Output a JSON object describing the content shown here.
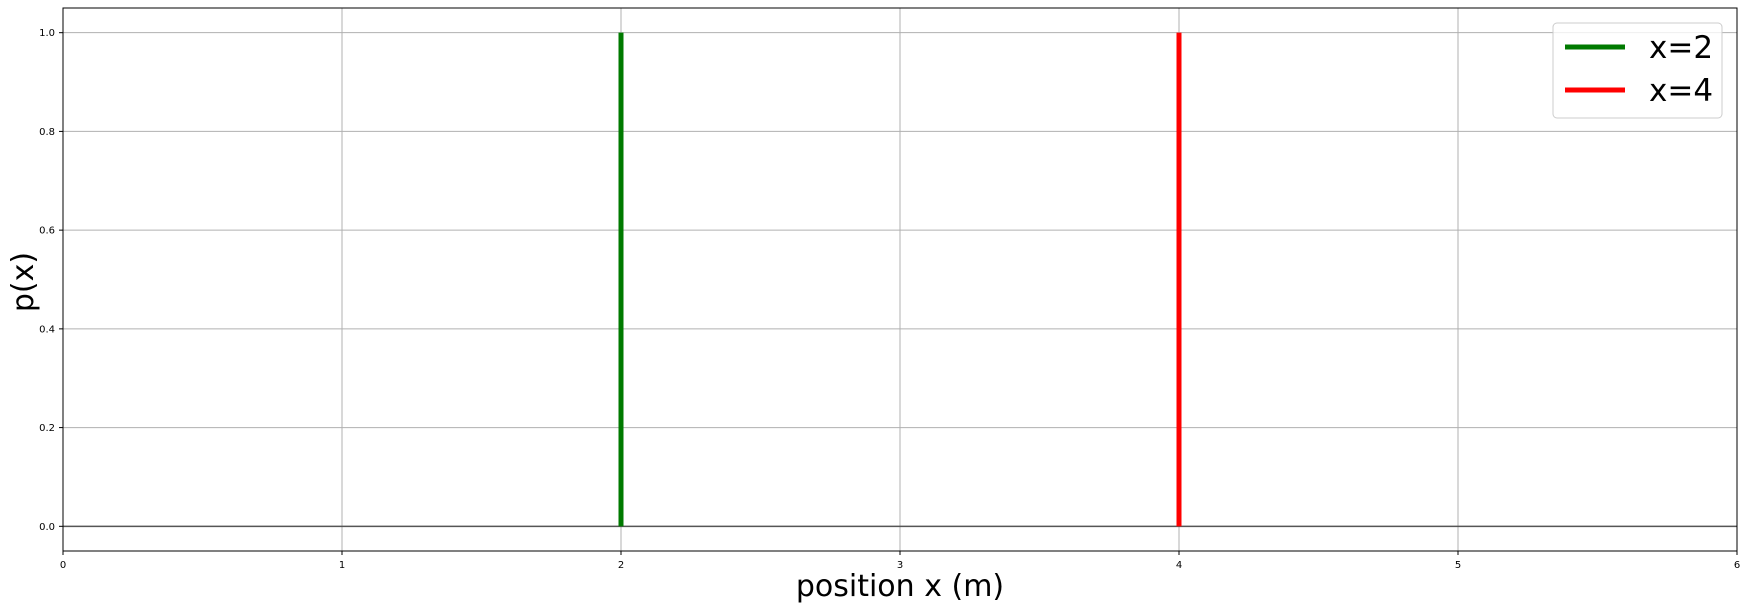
{
  "chart_data": {
    "type": "line",
    "title": "",
    "xlabel": "position x (m)",
    "ylabel": "p(x)",
    "xlim": [
      0,
      6
    ],
    "ylim": [
      -0.05,
      1.05
    ],
    "xticks": [
      "0",
      "1",
      "2",
      "3",
      "4",
      "5",
      "6"
    ],
    "yticks": [
      "0.0",
      "0.2",
      "0.4",
      "0.6",
      "0.8",
      "1.0"
    ],
    "grid": true,
    "legend_position": "top-right",
    "baseline": {
      "y": 0,
      "color": "#555555"
    },
    "series": [
      {
        "name": "x=2",
        "color": "#007a00",
        "x": [
          2,
          2
        ],
        "y": [
          0,
          1
        ]
      },
      {
        "name": "x=4",
        "color": "#ff0000",
        "x": [
          4,
          4
        ],
        "y": [
          0,
          1
        ]
      }
    ]
  }
}
